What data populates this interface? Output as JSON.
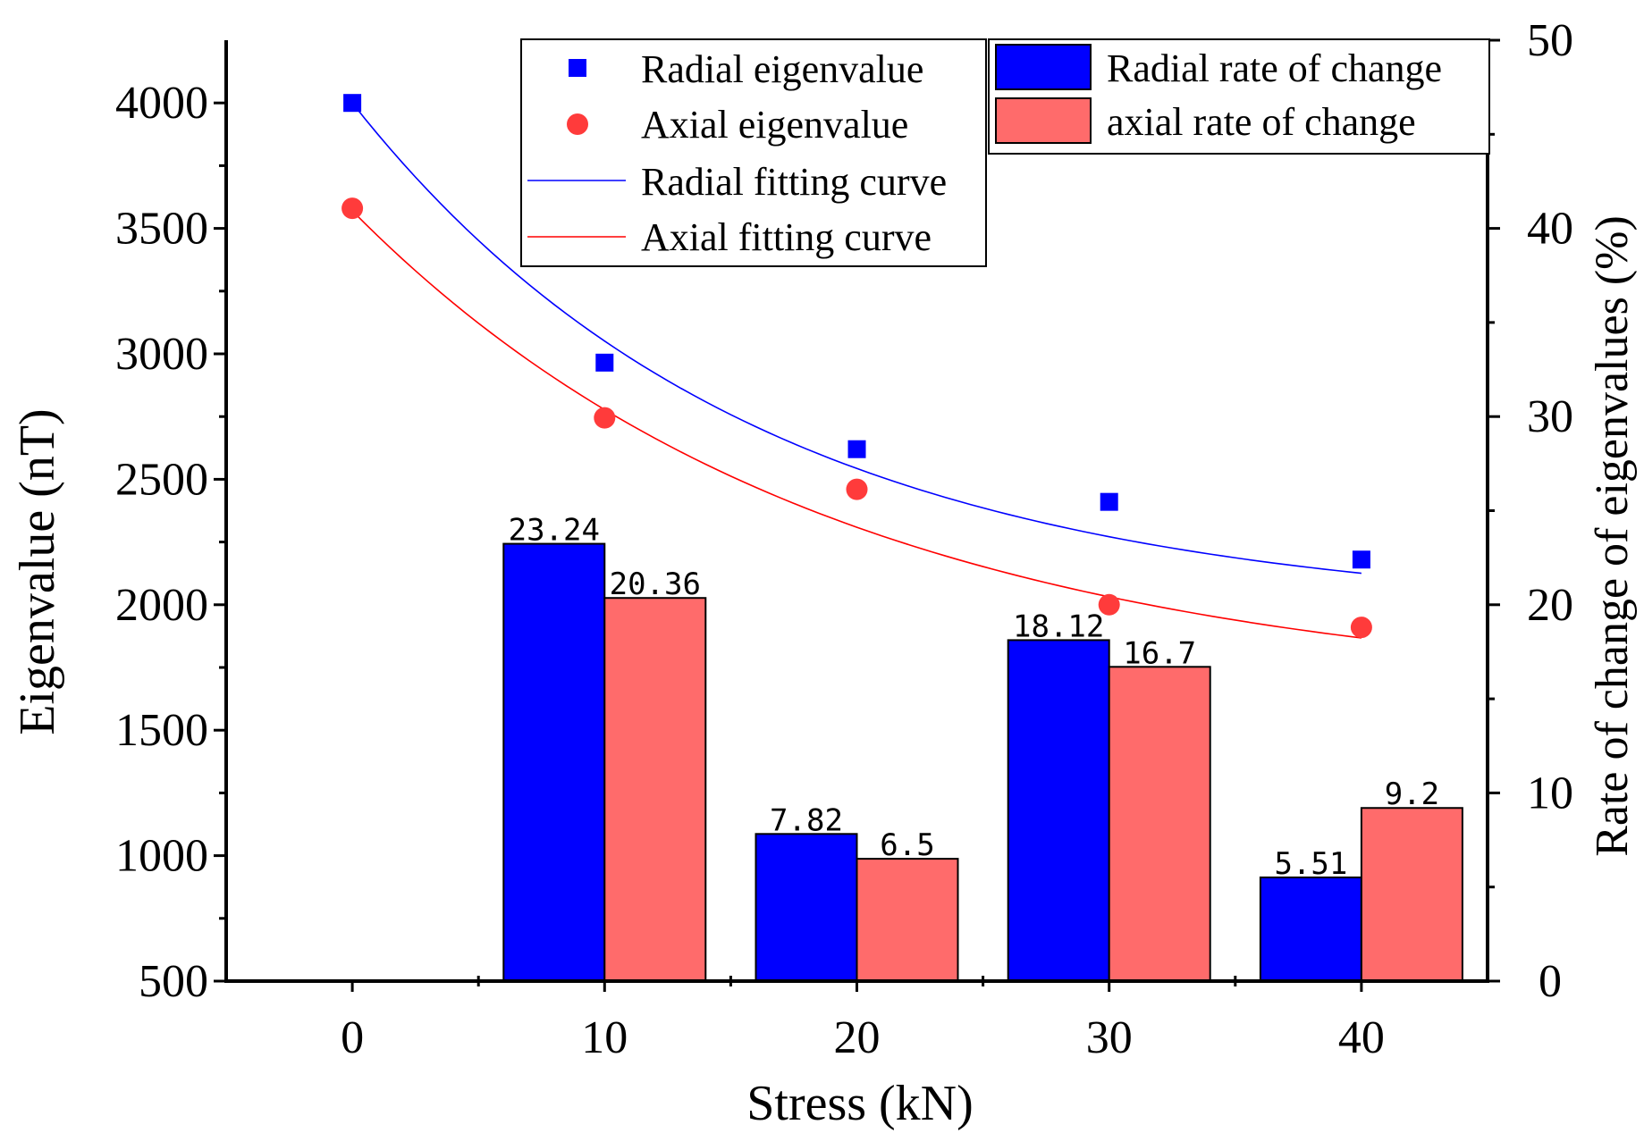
{
  "chart_data": {
    "type": "bar",
    "title": "",
    "xlabel": "Stress (kN)",
    "ylabel": "Eigenvalue (nT)",
    "y2label": "Rate of change of eigenvalues (%)",
    "categories": [
      "0",
      "10",
      "20",
      "30",
      "40"
    ],
    "x": [
      0,
      10,
      20,
      30,
      40
    ],
    "ylim": [
      500,
      4250
    ],
    "y2lim": [
      0,
      50
    ],
    "yticks": [
      "500",
      "1000",
      "1500",
      "2000",
      "2500",
      "3000",
      "3500",
      "4000"
    ],
    "y2ticks": [
      "0",
      "10",
      "20",
      "30",
      "40",
      "50"
    ],
    "points": [
      {
        "name": "Radial eigenvalue",
        "marker": "square",
        "color": "#0000ff",
        "values": [
          4000,
          2965,
          2620,
          2410,
          2180
        ]
      },
      {
        "name": "Axial eigenvalue",
        "marker": "circle",
        "color": "#ff3b3b",
        "values": [
          3580,
          2745,
          2460,
          2000,
          1910
        ]
      }
    ],
    "curves": [
      {
        "name": "Radial fitting curve",
        "color": "#0000ff",
        "model": {
          "a": 1958,
          "b": 2042,
          "k": 0.0625
        }
      },
      {
        "name": "Axial fitting curve",
        "color": "#ff0000",
        "model": {
          "a": 1630,
          "b": 1940,
          "k": 0.0525
        }
      }
    ],
    "series": [
      {
        "name": "Radial rate of change",
        "axis": "right",
        "color": "#0000ff",
        "values": [
          null,
          23.24,
          7.82,
          18.12,
          5.51
        ],
        "labels": [
          "",
          "23.24",
          "7.82",
          "18.12",
          "5.51"
        ]
      },
      {
        "name": "axial rate of change",
        "axis": "right",
        "color": "#ff6b6b",
        "values": [
          null,
          20.36,
          6.5,
          16.7,
          9.2
        ],
        "labels": [
          "",
          "20.36",
          "6.5",
          "16.7",
          "9.2"
        ]
      }
    ],
    "legend": {
      "left": [
        "Radial eigenvalue",
        "Axial eigenvalue",
        "Radial fitting curve",
        "Axial fitting curve"
      ],
      "right": [
        "Radial rate of change",
        "axial rate of change"
      ],
      "position": "top"
    }
  }
}
